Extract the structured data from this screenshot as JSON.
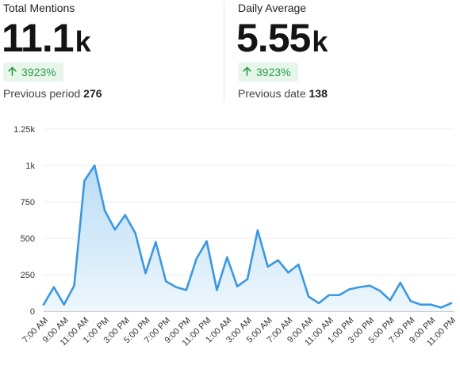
{
  "stats": [
    {
      "label": "Total Mentions",
      "value": "11.1",
      "suffix": "k",
      "change": "3923%",
      "previous_label": "Previous period",
      "previous_value": "276"
    },
    {
      "label": "Daily Average",
      "value": "5.55",
      "suffix": "k",
      "change": "3923%",
      "previous_label": "Previous date",
      "previous_value": "138"
    }
  ],
  "colors": {
    "line": "#3b98e0",
    "fill_top": "#b9dcf6",
    "fill_bottom": "#eef7fd",
    "badge_bg": "#e6f7ea",
    "badge_text": "#2f9a4d"
  },
  "chart_data": {
    "type": "area",
    "title": "",
    "xlabel": "",
    "ylabel": "",
    "ylim": [
      0,
      1250
    ],
    "yticks": [
      0,
      250,
      500,
      750,
      1000,
      1250
    ],
    "ytick_labels": [
      "0",
      "250",
      "500",
      "750",
      "1k",
      "1.25k"
    ],
    "grid": true,
    "xtick_labels": [
      "7:00 AM",
      "9:00 AM",
      "11:00 AM",
      "1:00 PM",
      "3:00 PM",
      "5:00 PM",
      "7:00 PM",
      "9:00 PM",
      "11:00 PM",
      "1:00 AM",
      "3:00 AM",
      "5:00 AM",
      "7:00 AM",
      "9:00 AM",
      "11:00 AM",
      "1:00 PM",
      "3:00 PM",
      "5:00 PM",
      "7:00 PM",
      "9:00 PM",
      "11:00 PM"
    ],
    "series": [
      {
        "values": [
          45,
          165,
          45,
          175,
          895,
          1000,
          690,
          560,
          660,
          535,
          260,
          475,
          205,
          165,
          145,
          360,
          480,
          145,
          370,
          170,
          220,
          555,
          305,
          350,
          265,
          320,
          100,
          55,
          110,
          110,
          150,
          165,
          175,
          140,
          75,
          195,
          70,
          45,
          45,
          25,
          55
        ]
      }
    ]
  }
}
